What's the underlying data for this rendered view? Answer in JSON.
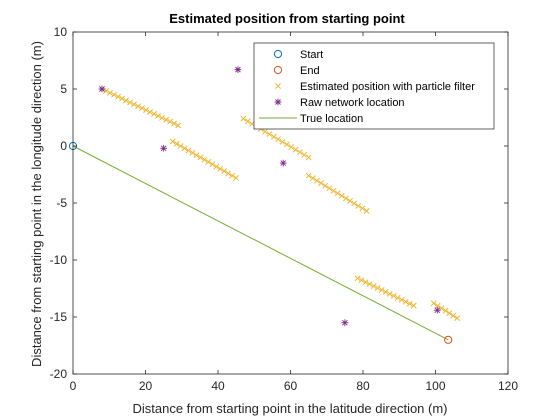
{
  "chart_data": {
    "type": "scatter",
    "title": "Estimated position from starting point",
    "xlabel": "Distance from starting point in the latitude direction (m)",
    "ylabel": "Distance from starting point in the longitude direction (m)",
    "xlim": [
      0,
      120
    ],
    "ylim": [
      -20,
      10
    ],
    "xticks": [
      0,
      20,
      40,
      60,
      80,
      100,
      120
    ],
    "yticks": [
      -20,
      -15,
      -10,
      -5,
      0,
      5,
      10
    ],
    "grid": false,
    "legend_position": "top-right",
    "colors": {
      "start": "#0072BD",
      "end": "#D95319",
      "particle": "#EDB120",
      "raw": "#7E2F8E",
      "true": "#77AC30",
      "axis": "#262626"
    },
    "legend": [
      {
        "key": "start",
        "label": "Start",
        "marker": "circle"
      },
      {
        "key": "end",
        "label": "End",
        "marker": "circle"
      },
      {
        "key": "particle",
        "label": "Estimated position with particle filter",
        "marker": "x"
      },
      {
        "key": "raw",
        "label": "Raw network location",
        "marker": "asterisk"
      },
      {
        "key": "true",
        "label": "True location",
        "marker": "line"
      }
    ],
    "series": {
      "start": {
        "points": [
          [
            0,
            0
          ]
        ]
      },
      "end": {
        "points": [
          [
            103.5,
            -17
          ]
        ]
      },
      "true_location": {
        "points": [
          [
            0,
            0
          ],
          [
            103.5,
            -17
          ]
        ]
      },
      "raw_network_location": {
        "points": [
          [
            8,
            5
          ],
          [
            25,
            -0.2
          ],
          [
            45.5,
            6.7
          ],
          [
            58,
            -1.5
          ],
          [
            75,
            -15.5
          ],
          [
            100.5,
            -14.4
          ]
        ]
      },
      "particle_filter": {
        "segments": [
          {
            "start": [
              8,
              5
            ],
            "end": [
              29,
              1.8
            ],
            "count": 20
          },
          {
            "start": [
              27.5,
              0.4
            ],
            "end": [
              45,
              -2.8
            ],
            "count": 17
          },
          {
            "start": [
              47,
              2.4
            ],
            "end": [
              65,
              -1
            ],
            "count": 16
          },
          {
            "start": [
              65,
              -2.6
            ],
            "end": [
              81,
              -5.7
            ],
            "count": 15
          },
          {
            "start": [
              78.5,
              -11.6
            ],
            "end": [
              94,
              -14
            ],
            "count": 15
          },
          {
            "start": [
              99.5,
              -13.8
            ],
            "end": [
              106,
              -15.1
            ],
            "count": 7
          }
        ]
      }
    }
  }
}
